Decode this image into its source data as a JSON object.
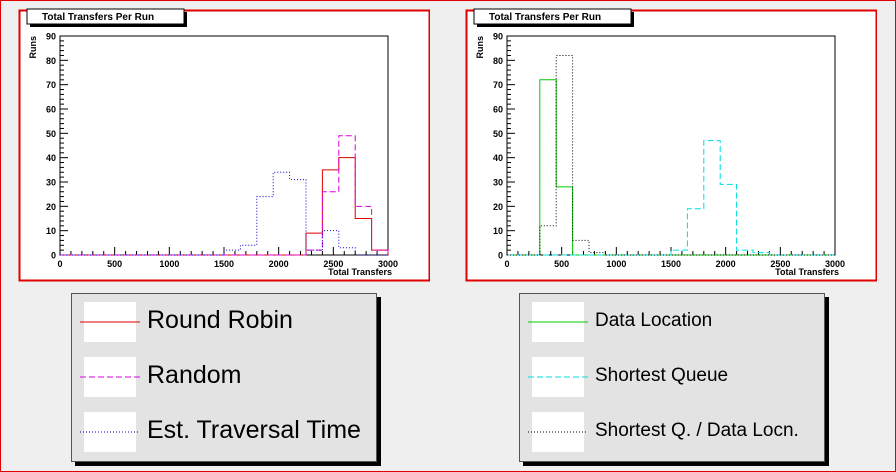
{
  "chart_data": [
    {
      "type": "histogram",
      "title": "Total Transfers Per Run",
      "xlabel": "Total Transfers",
      "ylabel": "Runs",
      "xlim": [
        0,
        3000
      ],
      "ylim": [
        0,
        90
      ],
      "x_ticks": [
        0,
        500,
        1000,
        1500,
        2000,
        2500,
        3000
      ],
      "y_ticks": [
        0,
        10,
        20,
        30,
        40,
        50,
        60,
        70,
        80,
        90
      ],
      "bin_edges": [
        0,
        150,
        300,
        450,
        600,
        750,
        900,
        1050,
        1200,
        1350,
        1500,
        1650,
        1800,
        1950,
        2100,
        2250,
        2400,
        2550,
        2700,
        2850,
        3000
      ],
      "series": [
        {
          "name": "Round Robin",
          "color": "#e00000",
          "dash": "solid",
          "values": [
            0,
            0,
            0,
            0,
            0,
            0,
            0,
            0,
            0,
            0,
            0,
            0,
            0,
            0,
            0,
            9,
            35,
            40,
            15,
            2
          ]
        },
        {
          "name": "Random",
          "color": "#dd00dd",
          "dash": "dashed",
          "values": [
            0,
            0,
            0,
            0,
            0,
            0,
            0,
            0,
            0,
            0,
            0,
            0,
            0,
            0,
            0,
            2,
            26,
            49,
            20,
            2
          ]
        },
        {
          "name": "Est. Traversal Time",
          "color": "#0000cc",
          "dash": "dotted",
          "values": [
            0,
            0,
            0,
            0,
            0,
            0,
            0,
            0,
            0,
            0,
            2,
            4,
            24,
            34,
            31,
            2,
            10,
            3,
            0,
            0
          ]
        }
      ]
    },
    {
      "type": "histogram",
      "title": "Total Transfers Per Run",
      "xlabel": "Total Transfers",
      "ylabel": "Runs",
      "xlim": [
        0,
        3000
      ],
      "ylim": [
        0,
        90
      ],
      "x_ticks": [
        0,
        500,
        1000,
        1500,
        2000,
        2500,
        3000
      ],
      "y_ticks": [
        0,
        10,
        20,
        30,
        40,
        50,
        60,
        70,
        80,
        90
      ],
      "bin_edges": [
        0,
        150,
        300,
        450,
        600,
        750,
        900,
        1050,
        1200,
        1350,
        1500,
        1650,
        1800,
        1950,
        2100,
        2250,
        2400,
        2550,
        2700,
        2850,
        3000
      ],
      "series": [
        {
          "name": "Data Location",
          "color": "#00cc00",
          "dash": "solid",
          "values": [
            0,
            0,
            72,
            28,
            0,
            0,
            0,
            0,
            0,
            0,
            0,
            0,
            0,
            0,
            0,
            0,
            0,
            0,
            0,
            0
          ]
        },
        {
          "name": "Shortest Queue",
          "color": "#00dddd",
          "dash": "dashed",
          "values": [
            0,
            0,
            0,
            0,
            0,
            0,
            0,
            0,
            0,
            0,
            2,
            19,
            47,
            29,
            2,
            1,
            0,
            0,
            0,
            0
          ]
        },
        {
          "name": "Shortest Q. / Data Locn.",
          "color": "#000000",
          "dash": "dotted",
          "values": [
            0,
            0,
            12,
            82,
            6,
            1,
            0,
            0,
            0,
            0,
            0,
            0,
            0,
            0,
            0,
            0,
            0,
            0,
            0,
            0
          ]
        }
      ]
    }
  ]
}
